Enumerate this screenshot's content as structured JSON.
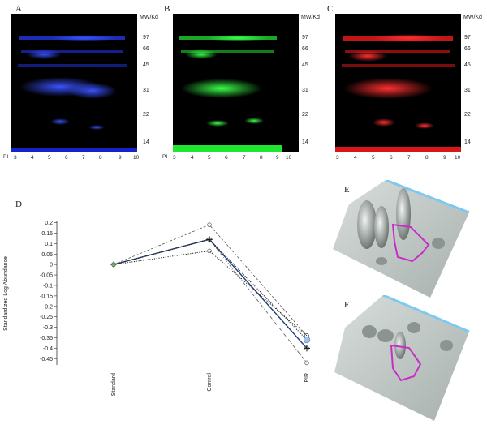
{
  "panels": {
    "A": "A",
    "B": "B",
    "C": "C",
    "D": "D",
    "E": "E",
    "F": "F"
  },
  "gels": {
    "mw_header": "MW/Kd",
    "mw_markers": [
      "97",
      "66",
      "45",
      "31",
      "22",
      "14"
    ],
    "pi_label": "PI",
    "pi_ticks": [
      "3",
      "4",
      "5",
      "6",
      "7",
      "8",
      "9",
      "10"
    ],
    "colors": {
      "A": "#1a2bff",
      "B": "#22ff33",
      "C": "#ff1a1a"
    }
  },
  "chart_data": {
    "type": "line",
    "title": "",
    "ylabel": "Standardized Log Abundance",
    "xlabel": "",
    "categories": [
      "Standard",
      "Control",
      "PIR"
    ],
    "y_ticks": [
      "0.2",
      "0.15",
      "0.1",
      "0.05",
      "0",
      "-0.05",
      "-0.1",
      "-0.15",
      "-0.2",
      "-0.25",
      "-0.3",
      "-0.35",
      "-0.4",
      "-0.45"
    ],
    "ylim": [
      -0.48,
      0.21
    ],
    "grid": false,
    "series": [
      {
        "style": "solid-mean",
        "values": [
          0,
          0.12,
          -0.4
        ]
      },
      {
        "style": "dotted",
        "values": [
          0,
          0.065,
          -0.34
        ]
      },
      {
        "style": "dashed",
        "values": [
          0,
          0.19,
          -0.34
        ]
      },
      {
        "style": "dashdot",
        "values": [
          0,
          0.12,
          -0.47
        ]
      },
      {
        "style": "dotted-heavy",
        "values": [
          0,
          0.12,
          -0.36
        ]
      }
    ]
  }
}
